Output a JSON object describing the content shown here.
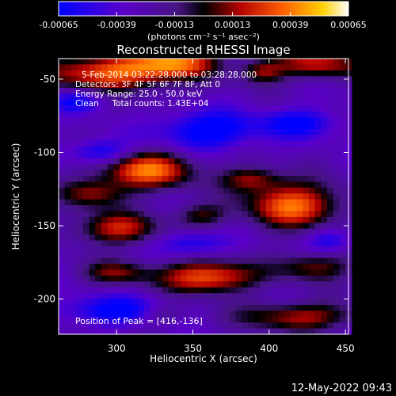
{
  "chart_data": {
    "type": "heatmap",
    "title": "Reconstructed RHESSI Image",
    "xlabel": "Heliocentric X (arcsec)",
    "ylabel": "Heliocentric Y (arcsec)",
    "xlim": [
      262,
      452
    ],
    "ylim": [
      -224,
      -36
    ],
    "x_ticks": [
      "300",
      "350",
      "400",
      "450"
    ],
    "x_tick_values": [
      300,
      350,
      400,
      450
    ],
    "y_ticks": [
      "-50",
      "-100",
      "-150",
      "-200"
    ],
    "y_tick_values": [
      -50,
      -100,
      -150,
      -200
    ],
    "colorbar": {
      "min": -0.00065,
      "max": 0.00065,
      "tick_labels": [
        "-0.00065",
        "-0.00039",
        "-0.00013",
        "0.00013",
        "0.00039",
        "0.00065"
      ],
      "tick_values": [
        -0.00065,
        -0.00039,
        -0.00013,
        0.00013,
        0.00039,
        0.00065
      ],
      "units": "(photons cm⁻² s⁻¹ asec⁻²)",
      "colors": [
        "#0000ff",
        "#5a00c8",
        "#000000",
        "#b40000",
        "#ff6000",
        "#ffd000",
        "#ffffff"
      ]
    },
    "annotations": [
      "5-Feb-2014 03:22:28.000 to 03:28:28.000",
      "Detectors: 3F 4F 5F 6F 7F 8F, Att 0",
      "Energy Range: 25.0 - 50.0 keV",
      "Clean     Total counts: 1.43E+04"
    ],
    "peak_label": "Position of Peak = [416,-136]",
    "peak": [
      416,
      -136
    ],
    "sources": [
      {
        "x": 298,
        "y": -45,
        "sx": 32,
        "sy": 9,
        "amp": 1.0
      },
      {
        "x": 340,
        "y": -38,
        "sx": 18,
        "sy": 7,
        "amp": 0.8
      },
      {
        "x": 432,
        "y": -40,
        "sx": 22,
        "sy": 7,
        "amp": 0.75
      },
      {
        "x": 395,
        "y": -45,
        "sx": 10,
        "sy": 6,
        "amp": 0.55
      },
      {
        "x": 320,
        "y": -112,
        "sx": 22,
        "sy": 9,
        "amp": 1.0
      },
      {
        "x": 285,
        "y": -128,
        "sx": 16,
        "sy": 7,
        "amp": 0.6
      },
      {
        "x": 416,
        "y": -136,
        "sx": 22,
        "sy": 11,
        "amp": 1.0
      },
      {
        "x": 388,
        "y": -118,
        "sx": 14,
        "sy": 6,
        "amp": 0.6
      },
      {
        "x": 300,
        "y": -152,
        "sx": 20,
        "sy": 8,
        "amp": 0.75
      },
      {
        "x": 355,
        "y": -143,
        "sx": 12,
        "sy": 6,
        "amp": 0.5
      },
      {
        "x": 360,
        "y": -185,
        "sx": 22,
        "sy": 8,
        "amp": 1.0
      },
      {
        "x": 300,
        "y": -182,
        "sx": 16,
        "sy": 6,
        "amp": 0.55
      },
      {
        "x": 430,
        "y": -178,
        "sx": 18,
        "sy": 7,
        "amp": 0.6
      },
      {
        "x": 420,
        "y": -212,
        "sx": 28,
        "sy": 7,
        "amp": 0.7
      },
      {
        "x": 330,
        "y": -210,
        "sx": 12,
        "sy": 5,
        "amp": 0.4
      },
      {
        "x": 275,
        "y": -65,
        "sx": 12,
        "sy": 5,
        "amp": -0.55
      },
      {
        "x": 360,
        "y": -85,
        "sx": 22,
        "sy": 9,
        "amp": -0.7
      },
      {
        "x": 420,
        "y": -80,
        "sx": 18,
        "sy": 7,
        "amp": -0.55
      },
      {
        "x": 290,
        "y": -100,
        "sx": 14,
        "sy": 6,
        "amp": -0.6
      },
      {
        "x": 300,
        "y": -208,
        "sx": 26,
        "sy": 7,
        "amp": -0.6
      },
      {
        "x": 350,
        "y": -162,
        "sx": 16,
        "sy": 6,
        "amp": -0.5
      },
      {
        "x": 440,
        "y": -160,
        "sx": 10,
        "sy": 6,
        "amp": -0.45
      }
    ]
  },
  "footer": {
    "timestamp": "12-May-2022 09:43"
  }
}
